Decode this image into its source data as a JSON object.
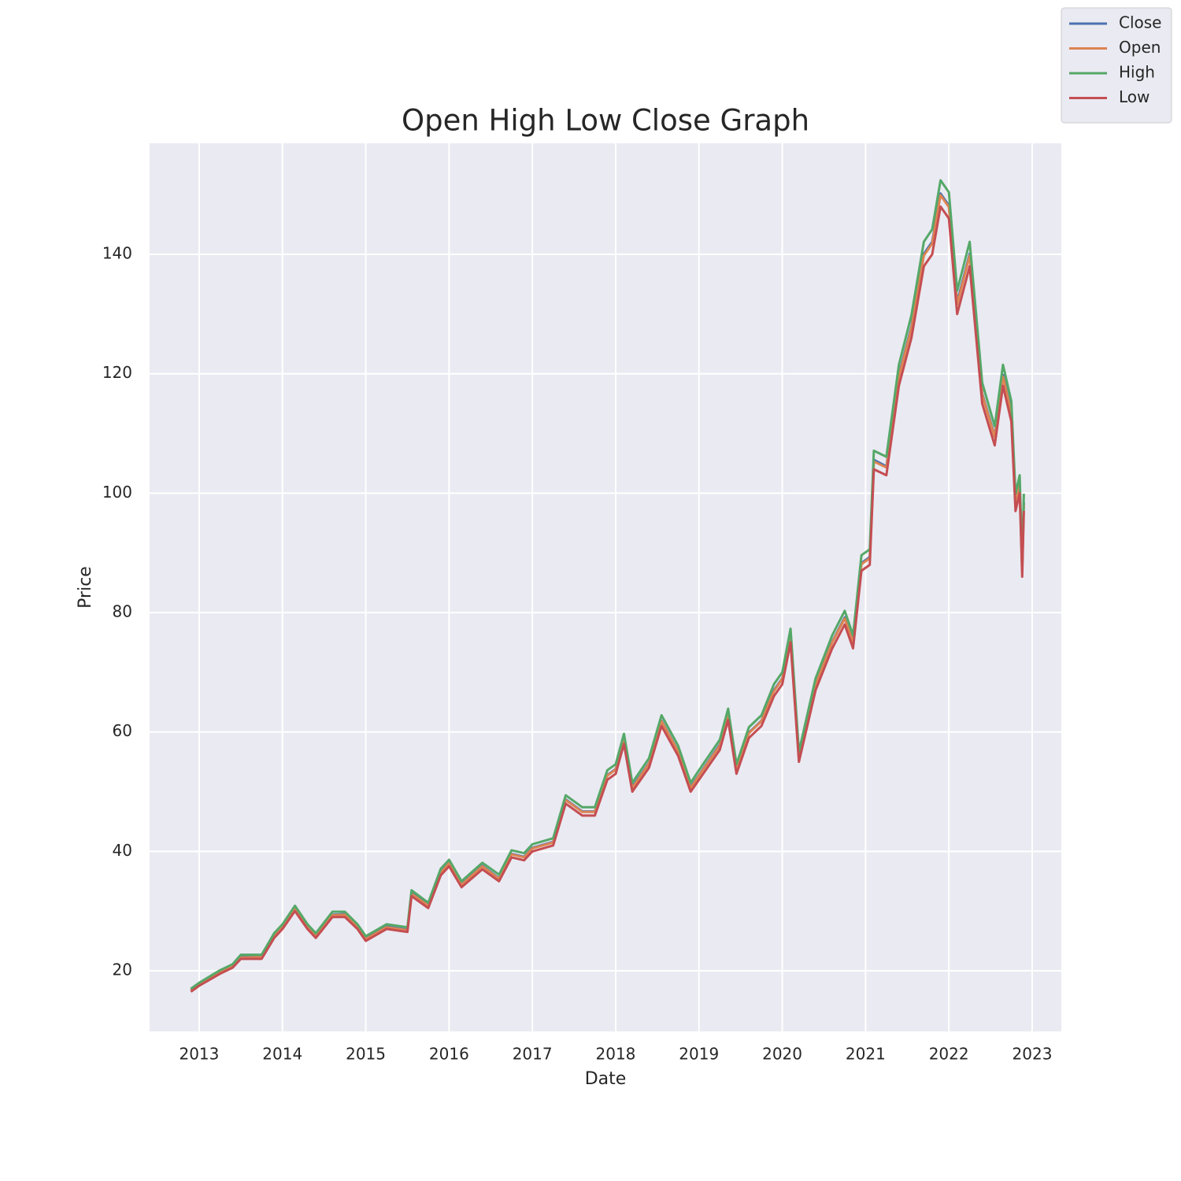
{
  "chart_data": {
    "type": "line",
    "title": "Open High Low Close Graph",
    "x_label": "Date",
    "y_label": "Price",
    "x": [
      2012.9,
      2013.0,
      2013.25,
      2013.4,
      2013.5,
      2013.75,
      2013.9,
      2014.0,
      2014.15,
      2014.3,
      2014.4,
      2014.6,
      2014.75,
      2014.9,
      2015.0,
      2015.25,
      2015.5,
      2015.55,
      2015.75,
      2015.9,
      2016.0,
      2016.15,
      2016.4,
      2016.6,
      2016.75,
      2016.9,
      2017.0,
      2017.25,
      2017.4,
      2017.6,
      2017.75,
      2017.9,
      2018.0,
      2018.1,
      2018.2,
      2018.4,
      2018.55,
      2018.75,
      2018.9,
      2019.0,
      2019.25,
      2019.35,
      2019.45,
      2019.6,
      2019.75,
      2019.9,
      2020.0,
      2020.1,
      2020.2,
      2020.4,
      2020.6,
      2020.75,
      2020.85,
      2020.95,
      2021.05,
      2021.1,
      2021.25,
      2021.4,
      2021.55,
      2021.7,
      2021.8,
      2021.9,
      2022.0,
      2022.1,
      2022.25,
      2022.4,
      2022.55,
      2022.65,
      2022.75,
      2022.8,
      2022.85,
      2022.88,
      2022.9
    ],
    "series": [
      {
        "name": "Close",
        "color": "#4c72b0",
        "values": [
          16.8,
          17.8,
          19.8,
          20.8,
          22.3,
          22.4,
          25.9,
          27.4,
          30.5,
          27.4,
          25.9,
          29.4,
          29.5,
          27.4,
          25.4,
          27.4,
          26.9,
          33.0,
          31.0,
          36.5,
          38.1,
          34.5,
          37.6,
          35.5,
          39.6,
          39.1,
          40.6,
          41.6,
          48.7,
          46.7,
          46.7,
          52.8,
          53.8,
          58.9,
          50.8,
          54.8,
          61.9,
          56.8,
          50.8,
          52.8,
          57.9,
          62.9,
          53.8,
          59.9,
          61.9,
          67.0,
          69.0,
          76.1,
          55.8,
          68.0,
          75.1,
          79.2,
          75.1,
          88.3,
          89.3,
          105.6,
          104.5,
          119.8,
          127.9,
          140.1,
          142.1,
          150.2,
          148.2,
          132.0,
          140.1,
          116.7,
          109.6,
          119.8,
          113.7,
          98.5,
          101.5,
          87.3,
          98.5
        ]
      },
      {
        "name": "Open",
        "color": "#dd8452",
        "values": [
          16.7,
          17.7,
          19.7,
          20.7,
          22.2,
          22.3,
          25.8,
          27.3,
          30.4,
          27.3,
          25.8,
          29.3,
          29.4,
          27.3,
          25.3,
          27.3,
          26.8,
          32.9,
          30.9,
          36.4,
          38.0,
          34.4,
          37.5,
          35.4,
          39.5,
          39.0,
          40.5,
          41.5,
          48.6,
          46.6,
          46.6,
          52.7,
          53.7,
          58.7,
          50.6,
          54.7,
          61.8,
          56.7,
          50.6,
          52.7,
          57.7,
          62.8,
          53.7,
          59.8,
          61.8,
          66.8,
          68.9,
          76.0,
          55.7,
          67.9,
          75.0,
          79.0,
          75.0,
          88.1,
          89.1,
          105.3,
          104.3,
          119.5,
          127.6,
          139.8,
          141.8,
          149.9,
          147.9,
          131.6,
          139.8,
          116.5,
          109.4,
          119.5,
          113.4,
          98.2,
          101.3,
          87.1,
          98.2
        ]
      },
      {
        "name": "High",
        "color": "#55a868",
        "values": [
          17.0,
          18.0,
          20.1,
          21.1,
          22.7,
          22.7,
          26.3,
          27.8,
          30.9,
          27.8,
          26.3,
          29.9,
          29.9,
          27.8,
          25.8,
          27.8,
          27.3,
          33.5,
          31.4,
          37.1,
          38.6,
          35.0,
          38.1,
          36.1,
          40.2,
          39.7,
          41.2,
          42.2,
          49.4,
          47.4,
          47.4,
          53.6,
          54.6,
          59.7,
          51.5,
          55.6,
          62.8,
          57.7,
          51.5,
          53.6,
          58.7,
          63.9,
          54.6,
          60.8,
          62.8,
          68.0,
          70.0,
          77.3,
          56.7,
          69.0,
          76.2,
          80.3,
          76.2,
          89.6,
          90.6,
          107.1,
          106.1,
          121.5,
          129.8,
          142.1,
          144.2,
          152.4,
          150.4,
          133.9,
          142.1,
          118.5,
          111.2,
          121.5,
          115.4,
          99.9,
          103.0,
          88.6,
          99.9
        ]
      },
      {
        "name": "Low",
        "color": "#c44e52",
        "values": [
          16.5,
          17.5,
          19.5,
          20.5,
          22,
          22,
          25.5,
          27,
          30,
          27,
          25.5,
          29,
          29,
          27,
          25,
          27,
          26.5,
          32.5,
          30.5,
          36,
          37.5,
          34,
          37,
          35,
          39,
          38.5,
          40,
          41,
          48,
          46,
          46,
          52,
          53,
          58,
          50,
          54,
          61,
          56,
          50,
          52,
          57,
          62,
          53,
          59,
          61,
          66,
          68,
          75,
          55,
          67,
          74,
          78,
          74,
          87,
          88,
          104,
          103,
          118,
          126,
          138,
          140,
          148,
          146,
          130,
          138,
          115,
          108,
          118,
          112,
          97,
          100,
          86,
          97
        ]
      }
    ],
    "xlim": [
      2012.405,
      2023.35
    ],
    "xticks": [
      2013,
      2014,
      2015,
      2016,
      2017,
      2018,
      2019,
      2020,
      2021,
      2022,
      2023
    ],
    "ylim": [
      9.85,
      158.6
    ],
    "yticks": [
      20,
      40,
      60,
      80,
      100,
      120,
      140
    ],
    "grid": true,
    "legend": "upper right"
  }
}
